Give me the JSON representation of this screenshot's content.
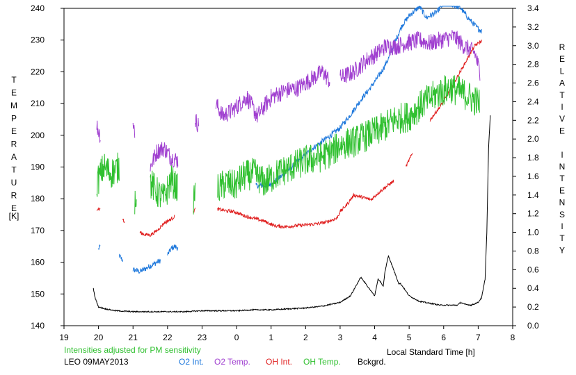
{
  "chart_data": {
    "type": "line",
    "title": "",
    "adjustment_note": "Intensities adjusted for PM sensitivity",
    "station_label": "LEO 09MAY2013",
    "xlabel": "Local Standard Time [h]",
    "ylabel_left": "TEMPERATURE",
    "ylabel_left_unit": "[K]",
    "ylabel_right": "RELATIVE INTENSITY",
    "x_ticks": [
      "19",
      "20",
      "21",
      "22",
      "23",
      "0",
      "1",
      "2",
      "3",
      "4",
      "5",
      "6",
      "7",
      "8"
    ],
    "x_range": [
      19,
      32
    ],
    "y_left_range": [
      140,
      240
    ],
    "y_left_ticks": [
      140,
      150,
      160,
      170,
      180,
      190,
      200,
      210,
      220,
      230,
      240
    ],
    "y_right_range": [
      0.0,
      3.4
    ],
    "y_right_ticks": [
      "0.0",
      "0.2",
      "0.4",
      "0.6",
      "0.8",
      "1.0",
      "1.2",
      "1.4",
      "1.6",
      "1.8",
      "2.0",
      "2.2",
      "2.4",
      "2.6",
      "2.8",
      "3.0",
      "3.2",
      "3.4"
    ],
    "grid": false,
    "legend_position": "bottom",
    "series": [
      {
        "name": "O2 Int.",
        "color": "#1e78dc",
        "axis": "right",
        "style": "noisy",
        "noise": 0.03,
        "x": [
          20.0,
          20.05,
          null,
          20.6,
          20.7,
          null,
          21.0,
          21.2,
          21.4,
          21.6,
          21.8,
          null,
          22.0,
          22.1,
          22.2,
          22.3,
          null,
          24.55,
          24.8,
          25.0,
          25.3,
          25.6,
          25.9,
          26.2,
          26.5,
          26.8,
          27.0,
          27.3,
          27.6,
          27.9,
          28.2,
          28.4,
          28.6,
          28.8,
          29.0,
          29.3,
          29.5,
          29.8,
          30.0,
          30.2,
          30.5,
          30.7,
          30.9,
          31.0,
          31.1
        ],
        "y": [
          0.82,
          0.85,
          null,
          0.75,
          0.7,
          null,
          0.6,
          0.58,
          0.62,
          0.66,
          0.7,
          null,
          0.76,
          0.82,
          0.85,
          0.83,
          null,
          1.5,
          1.5,
          1.52,
          1.6,
          1.7,
          1.8,
          1.9,
          1.98,
          2.06,
          2.12,
          2.26,
          2.42,
          2.56,
          2.72,
          2.86,
          3.05,
          3.22,
          3.32,
          3.42,
          3.3,
          3.36,
          3.45,
          3.45,
          3.4,
          3.3,
          3.22,
          3.18,
          3.16
        ]
      },
      {
        "name": "O2 Temp.",
        "color": "#a040d0",
        "axis": "left",
        "style": "noisy",
        "noise": 2.8,
        "x": [
          19.95,
          20.05,
          null,
          21.0,
          21.05,
          null,
          21.5,
          21.7,
          21.9,
          22.1,
          22.3,
          null,
          22.8,
          22.9,
          null,
          23.4,
          23.6,
          23.9,
          24.3,
          24.6,
          25.0,
          25.4,
          25.8,
          26.2,
          26.5,
          26.7,
          null,
          27.0,
          27.4,
          27.8,
          28.1,
          28.3,
          28.6,
          28.9,
          29.3,
          29.6,
          29.9,
          30.3,
          30.6,
          30.9,
          31.05
        ],
        "y": [
          203,
          200,
          null,
          204,
          201,
          null,
          190,
          195,
          196,
          193,
          192,
          null,
          205,
          203,
          null,
          210,
          206,
          208,
          212,
          206,
          212,
          214,
          215,
          218,
          220,
          217,
          null,
          218,
          220,
          224,
          226,
          228,
          228,
          229,
          230,
          229,
          230,
          231,
          228,
          226,
          220
        ]
      },
      {
        "name": "OH Int.",
        "color": "#e02020",
        "axis": "right",
        "style": "noisy",
        "noise": 0.018,
        "x": [
          19.95,
          20.05,
          null,
          20.7,
          20.75,
          null,
          21.2,
          21.3,
          21.5,
          21.7,
          21.9,
          22.1,
          22.2,
          null,
          22.75,
          22.8,
          null,
          23.45,
          23.7,
          23.95,
          24.2,
          24.5,
          24.8,
          25.1,
          25.4,
          25.7,
          26.0,
          26.3,
          26.6,
          26.9,
          27.0,
          27.2,
          27.4,
          27.6,
          27.9,
          28.1,
          28.3,
          28.55,
          null,
          28.9,
          29.1,
          null,
          29.6,
          30.0,
          30.3,
          30.6,
          30.9,
          31.1
        ],
        "y": [
          1.25,
          1.25,
          null,
          1.15,
          1.1,
          null,
          1.0,
          0.98,
          0.97,
          1.02,
          1.1,
          1.14,
          1.17,
          null,
          1.22,
          1.25,
          null,
          1.25,
          1.23,
          1.22,
          1.18,
          1.15,
          1.12,
          1.07,
          1.06,
          1.07,
          1.08,
          1.09,
          1.11,
          1.15,
          1.22,
          1.3,
          1.4,
          1.38,
          1.35,
          1.42,
          1.48,
          1.55,
          null,
          1.7,
          1.85,
          null,
          2.2,
          2.4,
          2.6,
          2.8,
          3.0,
          3.05
        ]
      },
      {
        "name": "OH Temp.",
        "color": "#30c030",
        "axis": "left",
        "style": "noisy",
        "noise": 5.0,
        "x": [
          19.95,
          20.15,
          20.35,
          20.6,
          null,
          21.05,
          21.1,
          null,
          21.5,
          21.7,
          21.9,
          22.1,
          22.3,
          null,
          22.75,
          22.8,
          null,
          23.45,
          23.7,
          23.95,
          24.2,
          24.5,
          24.8,
          25.2,
          25.6,
          26.0,
          26.4,
          26.8,
          27.0,
          27.4,
          27.8,
          28.2,
          28.6,
          29.0,
          29.4,
          29.8,
          30.2,
          30.6,
          30.9,
          31.05
        ],
        "y": [
          185,
          190,
          188,
          190,
          null,
          180,
          182,
          null,
          185,
          182,
          180,
          186,
          183,
          null,
          180,
          182,
          null,
          183,
          185,
          184,
          187,
          188,
          185,
          188,
          190,
          192,
          193,
          195,
          197,
          198,
          200,
          202,
          205,
          206,
          210,
          213,
          215,
          213,
          211,
          210
        ]
      },
      {
        "name": "Bckgrd.",
        "color": "#000000",
        "axis": "right",
        "style": "noisy",
        "noise": 0.006,
        "x": [
          19.85,
          19.9,
          20.0,
          20.2,
          20.5,
          21.0,
          21.5,
          22.0,
          22.5,
          23.0,
          23.5,
          24.0,
          24.5,
          25.0,
          25.5,
          26.0,
          26.5,
          27.0,
          27.3,
          27.6,
          27.8,
          28.0,
          28.1,
          28.15,
          28.25,
          28.3,
          28.4,
          28.5,
          28.6,
          28.65,
          28.7,
          28.75,
          28.85,
          29.0,
          29.3,
          29.6,
          29.9,
          30.2,
          30.4,
          30.5,
          30.6,
          30.8,
          31.0,
          31.1,
          31.2,
          31.25,
          31.3,
          31.35
        ],
        "y": [
          0.4,
          0.3,
          0.2,
          0.18,
          0.16,
          0.15,
          0.15,
          0.15,
          0.15,
          0.16,
          0.16,
          0.16,
          0.17,
          0.17,
          0.18,
          0.19,
          0.21,
          0.25,
          0.32,
          0.52,
          0.42,
          0.32,
          0.5,
          0.48,
          0.42,
          0.58,
          0.75,
          0.65,
          0.55,
          0.5,
          0.45,
          0.45,
          0.4,
          0.32,
          0.26,
          0.24,
          0.22,
          0.22,
          0.22,
          0.25,
          0.23,
          0.22,
          0.25,
          0.3,
          0.5,
          1.0,
          1.9,
          2.25
        ]
      }
    ]
  }
}
